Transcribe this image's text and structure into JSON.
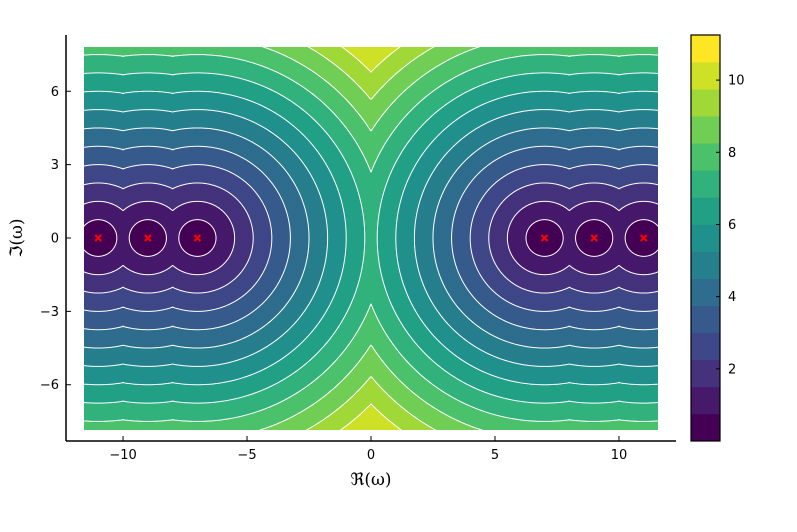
{
  "chart_data": {
    "type": "contour",
    "xlabel": "ℜ(ω)",
    "ylabel": "ℑ(ω)",
    "xlim": [
      -12.3,
      12.3
    ],
    "ylim": [
      -8.3,
      8.3
    ],
    "data_x_range": [
      -12,
      12
    ],
    "data_y_range": [
      -8,
      8
    ],
    "x_ticks": [
      -10,
      -5,
      0,
      5,
      10
    ],
    "x_tick_labels": [
      "−10",
      "−5",
      "0",
      "5",
      "10"
    ],
    "y_ticks": [
      -6,
      -3,
      0,
      3,
      6
    ],
    "y_tick_labels": [
      "−6",
      "−3",
      "0",
      "3",
      "6"
    ],
    "colorbar": {
      "levels": [
        0,
        0.75,
        1.5,
        2.25,
        3,
        3.75,
        4.5,
        5.25,
        6,
        6.75,
        7.5,
        8.25,
        9,
        9.75,
        10.5,
        11.25
      ],
      "ticks": [
        2,
        4,
        6,
        8,
        10
      ],
      "tick_labels": [
        "2",
        "4",
        "6",
        "8",
        "10"
      ],
      "colormap": "viridis"
    },
    "markers": {
      "symbol": "x",
      "color": "#ff0000",
      "points": [
        [
          -11,
          0
        ],
        [
          -9,
          0
        ],
        [
          -7,
          0
        ],
        [
          7,
          0
        ],
        [
          9,
          0
        ],
        [
          11,
          0
        ]
      ]
    },
    "contour_line_color": "#ffffff",
    "grid": false
  }
}
